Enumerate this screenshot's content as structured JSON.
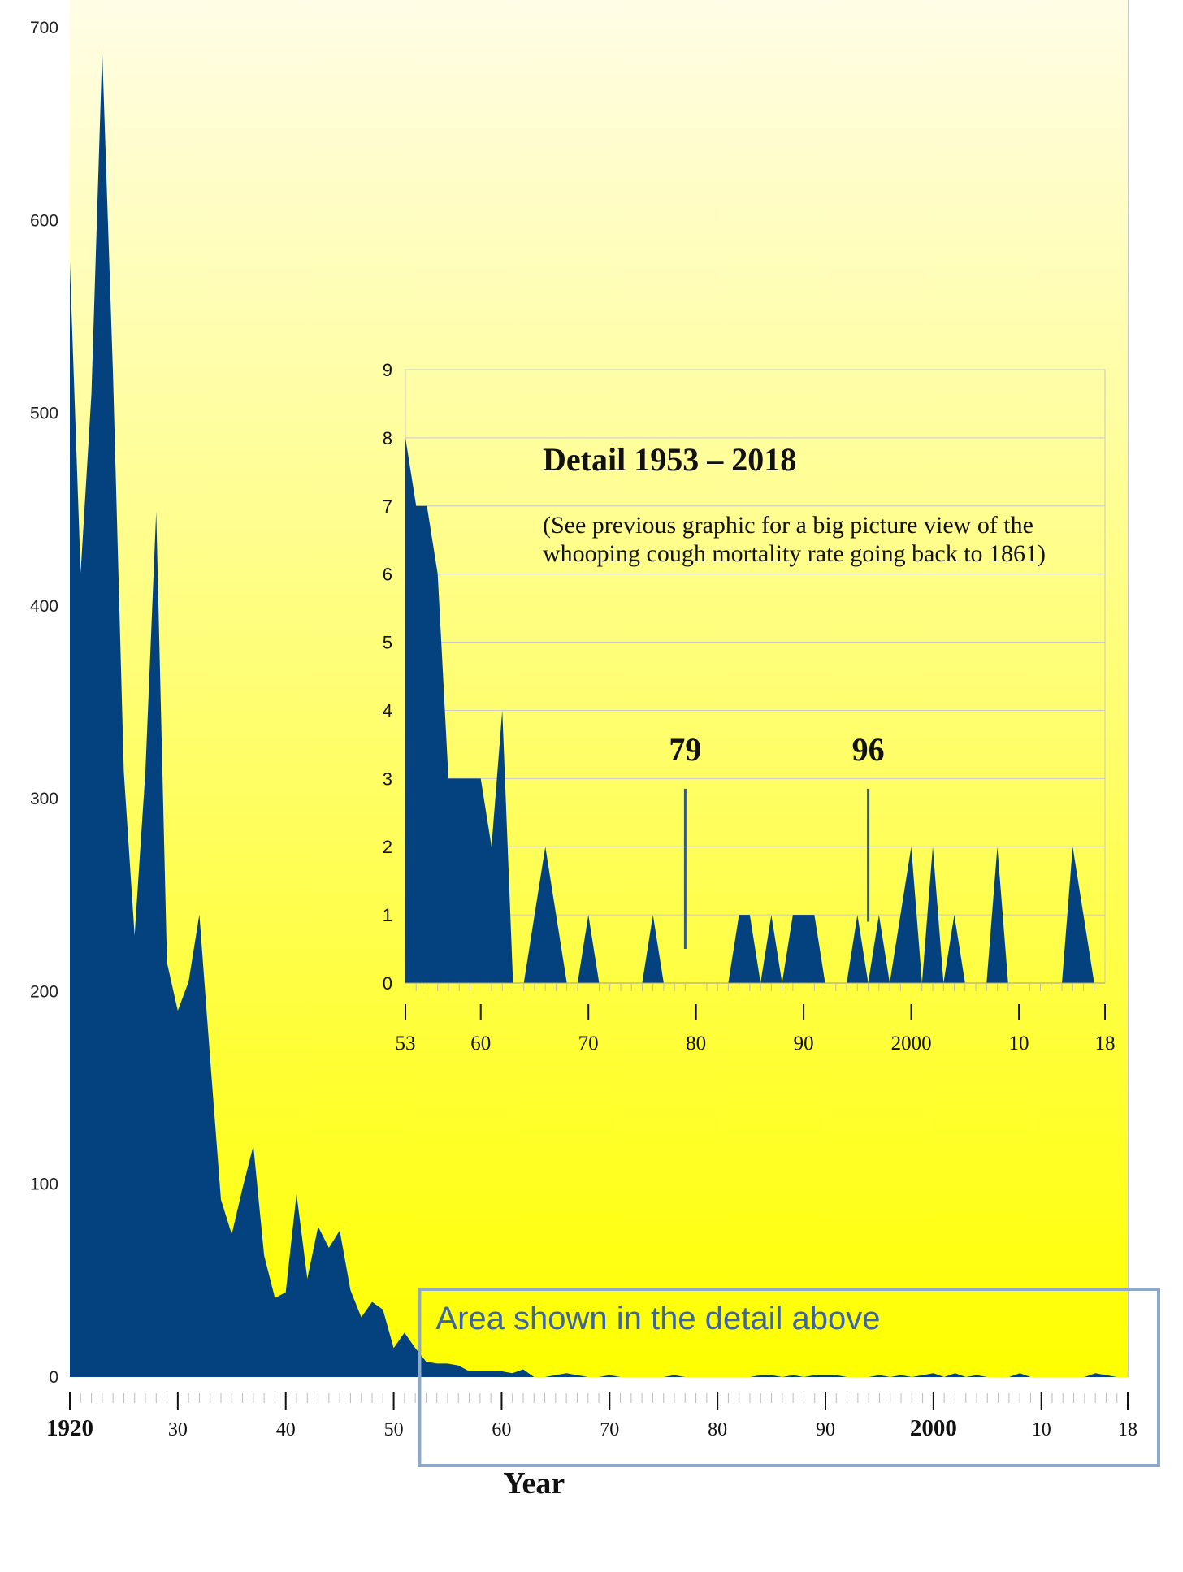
{
  "colors": {
    "area": "#03427f",
    "marker_line": "#2e5a94",
    "box": "#8ea8c9",
    "box_text": "#3d64a6",
    "bg_top": "#fffde6",
    "bg_bottom": "#ffff00",
    "grid": "#c9c9c9"
  },
  "chart_data": [
    {
      "type": "area",
      "title": "",
      "xlabel": "Year",
      "ylabel": "",
      "xlim": [
        1920,
        2018
      ],
      "ylim": [
        0,
        700
      ],
      "grid": false,
      "y_ticks": [
        0,
        100,
        200,
        300,
        400,
        500,
        600,
        700
      ],
      "y_tick_labels": [
        "0",
        "100",
        "200",
        "300",
        "400",
        "500",
        "600",
        "700"
      ],
      "x_tick_values": [
        1920,
        1930,
        1940,
        1950,
        1960,
        1970,
        1980,
        1990,
        2000,
        2010,
        2018
      ],
      "x_tick_labels": [
        "1920",
        "30",
        "40",
        "50",
        "60",
        "70",
        "80",
        "90",
        "2000",
        "10",
        "18"
      ],
      "x_tick_bold": [
        true,
        false,
        false,
        false,
        false,
        false,
        false,
        false,
        true,
        false,
        false
      ],
      "x": [
        1920,
        1921,
        1922,
        1923,
        1924,
        1925,
        1926,
        1927,
        1928,
        1929,
        1930,
        1931,
        1932,
        1933,
        1934,
        1935,
        1936,
        1937,
        1938,
        1939,
        1940,
        1941,
        1942,
        1943,
        1944,
        1945,
        1946,
        1947,
        1948,
        1949,
        1950,
        1951,
        1952,
        1953,
        1954,
        1955,
        1956,
        1957,
        1958,
        1959,
        1960,
        1961,
        1962,
        1963,
        1964,
        1965,
        1966,
        1967,
        1968,
        1969,
        1970,
        1971,
        1972,
        1973,
        1974,
        1975,
        1976,
        1977,
        1978,
        1979,
        1980,
        1981,
        1982,
        1983,
        1984,
        1985,
        1986,
        1987,
        1988,
        1989,
        1990,
        1991,
        1992,
        1993,
        1994,
        1995,
        1996,
        1997,
        1998,
        1999,
        2000,
        2001,
        2002,
        2003,
        2004,
        2005,
        2006,
        2007,
        2008,
        2009,
        2010,
        2011,
        2012,
        2013,
        2014,
        2015,
        2016,
        2017,
        2018
      ],
      "values": [
        578,
        417,
        510,
        688,
        520,
        314,
        229,
        314,
        449,
        215,
        190,
        205,
        240,
        165,
        92,
        74,
        98,
        120,
        63,
        41,
        44,
        95,
        51,
        78,
        67,
        76,
        45,
        31,
        39,
        35,
        15,
        23,
        15,
        8,
        7,
        7,
        6,
        3,
        3,
        3,
        3,
        2,
        4,
        0,
        0,
        1,
        2,
        1,
        0,
        0,
        1,
        0,
        0,
        0,
        0,
        0,
        1,
        0,
        0,
        0,
        0,
        0,
        0,
        0,
        1,
        1,
        0,
        1,
        0,
        1,
        1,
        1,
        0,
        0,
        0,
        1,
        0,
        1,
        0,
        1,
        2,
        0,
        2,
        0,
        1,
        0,
        0,
        0,
        2,
        0,
        0,
        0,
        0,
        0,
        0,
        2,
        1,
        0,
        0
      ]
    },
    {
      "type": "area",
      "title": "Detail 1953 – 2018",
      "subtitle_lines": [
        "(See previous graphic for a big picture view of the",
        "whooping cough mortality rate going back to 1861)"
      ],
      "xlabel": "",
      "ylabel": "",
      "xlim": [
        1953,
        2018
      ],
      "ylim": [
        0,
        9
      ],
      "grid": true,
      "y_ticks": [
        0,
        1,
        2,
        3,
        4,
        5,
        6,
        7,
        8,
        9
      ],
      "y_tick_labels": [
        "0",
        "1",
        "2",
        "3",
        "4",
        "5",
        "6",
        "7",
        "8",
        "9"
      ],
      "x_tick_values": [
        1953,
        1960,
        1970,
        1980,
        1990,
        2000,
        2010,
        2018
      ],
      "x_tick_labels": [
        "53",
        "60",
        "70",
        "80",
        "90",
        "2000",
        "10",
        "18"
      ],
      "x": [
        1953,
        1954,
        1955,
        1956,
        1957,
        1958,
        1959,
        1960,
        1961,
        1962,
        1963,
        1964,
        1965,
        1966,
        1967,
        1968,
        1969,
        1970,
        1971,
        1972,
        1973,
        1974,
        1975,
        1976,
        1977,
        1978,
        1979,
        1980,
        1981,
        1982,
        1983,
        1984,
        1985,
        1986,
        1987,
        1988,
        1989,
        1990,
        1991,
        1992,
        1993,
        1994,
        1995,
        1996,
        1997,
        1998,
        1999,
        2000,
        2001,
        2002,
        2003,
        2004,
        2005,
        2006,
        2007,
        2008,
        2009,
        2010,
        2011,
        2012,
        2013,
        2014,
        2015,
        2016,
        2017,
        2018
      ],
      "values": [
        8,
        7,
        7,
        6,
        3,
        3,
        3,
        3,
        2,
        4,
        0,
        0,
        1,
        2,
        1,
        0,
        0,
        1,
        0,
        0,
        0,
        0,
        0,
        1,
        0,
        0,
        0,
        0,
        0,
        0,
        0,
        1,
        1,
        0,
        1,
        0,
        1,
        1,
        1,
        0,
        0,
        0,
        1,
        0,
        1,
        0,
        1,
        2,
        0,
        2,
        0,
        1,
        0,
        0,
        0,
        2,
        0,
        0,
        0,
        0,
        0,
        0,
        2,
        1,
        0,
        0
      ],
      "annotations": [
        {
          "label": "79",
          "x": 1979,
          "y_from": 0.5,
          "y_to": 2.85
        },
        {
          "label": "96",
          "x": 1996,
          "y_from": 0.9,
          "y_to": 2.85
        }
      ]
    }
  ],
  "detail_box": {
    "label": "Area shown in the detail above",
    "x_from": 1953,
    "x_to": 2018
  }
}
